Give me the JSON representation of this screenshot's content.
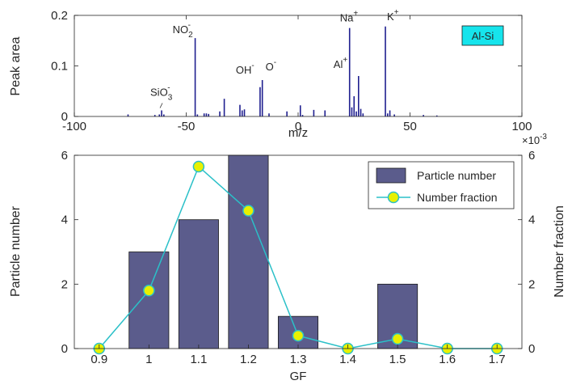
{
  "colors": {
    "spectrum": "#1f1f8f",
    "bar_fill": "#5b5c8c",
    "bar_edge": "#1a1a1a",
    "line": "#2bc0c8",
    "marker_fill": "#e8f000",
    "marker_edge": "#2bc0c8",
    "tag_fill": "#16e4ec",
    "axis": "#262626"
  },
  "chart_data": [
    {
      "type": "bar",
      "subtype": "mass-spectrum",
      "xlabel": "m/z",
      "ylabel": "Peak area",
      "xlim": [
        -100,
        100
      ],
      "ylim": [
        0,
        0.2
      ],
      "xticks": [
        "-100",
        "-50",
        "0",
        "50",
        "100"
      ],
      "yticks": [
        "0",
        "0.1",
        "0.2"
      ],
      "xtick_values": [
        -100,
        -50,
        0,
        50,
        100
      ],
      "ytick_values": [
        0,
        0.1,
        0.2
      ],
      "tag": "Al-Si",
      "peaks": [
        {
          "mz": -76,
          "area": 0.004
        },
        {
          "mz": -64,
          "area": 0.003
        },
        {
          "mz": -62,
          "area": 0.004
        },
        {
          "mz": -61,
          "area": 0.012
        },
        {
          "mz": -60,
          "area": 0.004
        },
        {
          "mz": -46,
          "area": 0.155
        },
        {
          "mz": -45,
          "area": 0.004
        },
        {
          "mz": -42,
          "area": 0.006
        },
        {
          "mz": -41,
          "area": 0.006
        },
        {
          "mz": -40,
          "area": 0.005
        },
        {
          "mz": -35,
          "area": 0.01
        },
        {
          "mz": -33,
          "area": 0.035
        },
        {
          "mz": -26,
          "area": 0.023
        },
        {
          "mz": -25,
          "area": 0.012
        },
        {
          "mz": -24,
          "area": 0.014
        },
        {
          "mz": -17,
          "area": 0.058
        },
        {
          "mz": -16,
          "area": 0.072
        },
        {
          "mz": -13,
          "area": 0.006
        },
        {
          "mz": -5,
          "area": 0.01
        },
        {
          "mz": 1,
          "area": 0.022
        },
        {
          "mz": 2,
          "area": 0.003
        },
        {
          "mz": 7,
          "area": 0.013
        },
        {
          "mz": 12,
          "area": 0.012
        },
        {
          "mz": 23,
          "area": 0.175
        },
        {
          "mz": 24,
          "area": 0.018
        },
        {
          "mz": 25,
          "area": 0.04
        },
        {
          "mz": 26,
          "area": 0.01
        },
        {
          "mz": 27,
          "area": 0.08
        },
        {
          "mz": 28,
          "area": 0.015
        },
        {
          "mz": 29,
          "area": 0.006
        },
        {
          "mz": 39,
          "area": 0.178
        },
        {
          "mz": 40,
          "area": 0.006
        },
        {
          "mz": 41,
          "area": 0.012
        },
        {
          "mz": 43,
          "area": 0.004
        },
        {
          "mz": 56,
          "area": 0.003
        },
        {
          "mz": 62,
          "area": 0.002
        }
      ],
      "annotations": [
        {
          "mz": -46,
          "y": 0.155,
          "base": "NO",
          "sub": "2",
          "sup": "-"
        },
        {
          "mz": -61,
          "y": 0.012,
          "base": "SiO",
          "sub": "3",
          "sup": "-"
        },
        {
          "mz": -17,
          "y": 0.072,
          "base": "OH",
          "sub": "",
          "sup": "-"
        },
        {
          "mz": -16,
          "y": 0.072,
          "base": "O",
          "sub": "",
          "sup": "-"
        },
        {
          "mz": 23,
          "y": 0.175,
          "base": "Na",
          "sub": "",
          "sup": "+"
        },
        {
          "mz": 27,
          "y": 0.08,
          "base": "Al",
          "sub": "",
          "sup": "+"
        },
        {
          "mz": 39,
          "y": 0.178,
          "base": "K",
          "sub": "",
          "sup": "+"
        }
      ]
    },
    {
      "type": "bar",
      "xlabel": "GF",
      "ylabel": "Particle number",
      "y2label": "Number fraction",
      "y2_multiplier": "×10",
      "y2_exponent": "-3",
      "categories": [
        "0.9",
        "1",
        "1.1",
        "1.2",
        "1.3",
        "1.4",
        "1.5",
        "1.6",
        "1.7"
      ],
      "category_values": [
        0.9,
        1.0,
        1.1,
        1.2,
        1.3,
        1.4,
        1.5,
        1.6,
        1.7
      ],
      "xlim": [
        0.85,
        1.75
      ],
      "ylim": [
        0,
        6
      ],
      "y2lim": [
        0,
        6
      ],
      "yticks": [
        "0",
        "2",
        "4",
        "6"
      ],
      "ytick_values": [
        0,
        2,
        4,
        6
      ],
      "y2ticks": [
        "0",
        "2",
        "4",
        "6"
      ],
      "y2tick_values": [
        0,
        2,
        4,
        6
      ],
      "legend_position": "top-right",
      "series": [
        {
          "name": "Particle number",
          "type": "bar",
          "axis": "left",
          "values": [
            0,
            3,
            4,
            6,
            1,
            0,
            2,
            0,
            0
          ]
        },
        {
          "name": "Number fraction",
          "type": "line",
          "axis": "right",
          "values": [
            0,
            1.8,
            5.65,
            4.28,
            0.4,
            0,
            0.3,
            0,
            0
          ]
        }
      ]
    }
  ]
}
